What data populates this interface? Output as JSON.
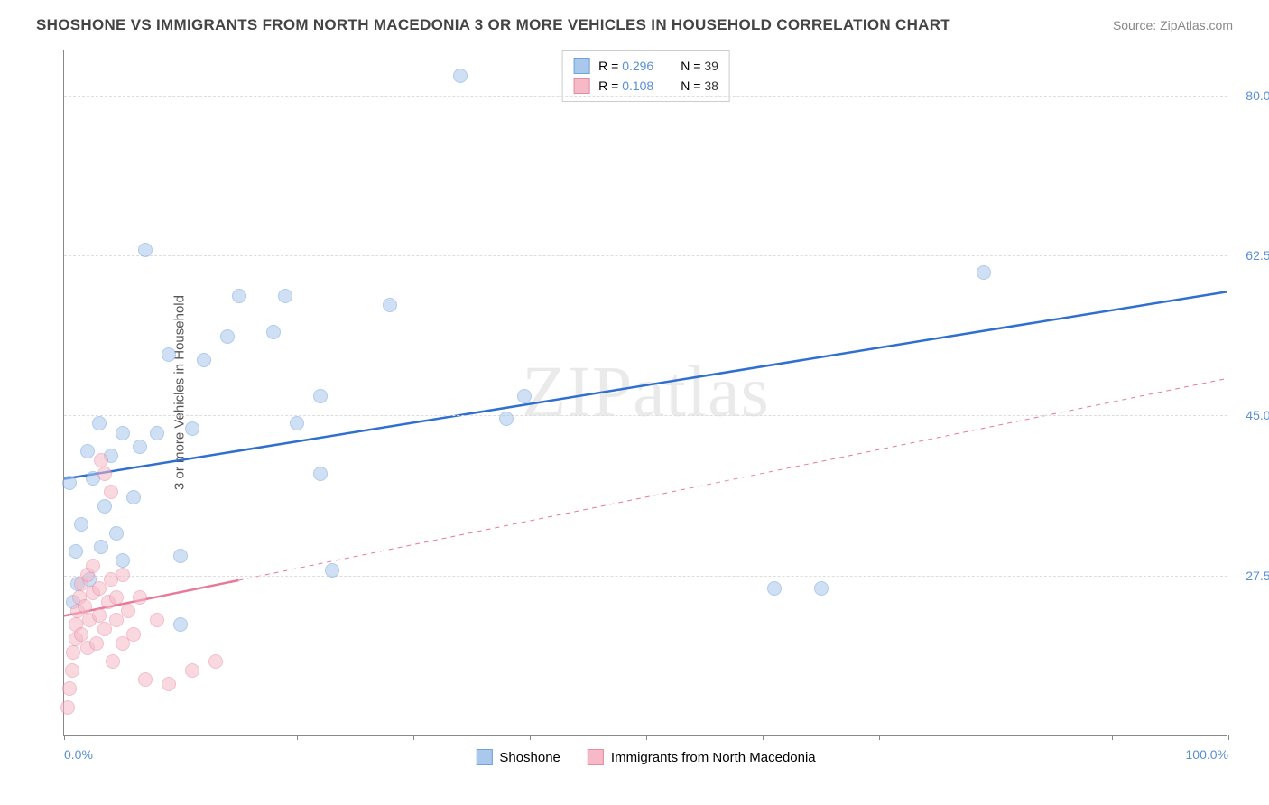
{
  "title": "SHOSHONE VS IMMIGRANTS FROM NORTH MACEDONIA 3 OR MORE VEHICLES IN HOUSEHOLD CORRELATION CHART",
  "source": "Source: ZipAtlas.com",
  "ylabel": "3 or more Vehicles in Household",
  "watermark": "ZIPatlas",
  "chart": {
    "type": "scatter-with-regression",
    "background_color": "#ffffff",
    "grid_color": "#dddddd",
    "axis_color": "#888888",
    "tick_label_color": "#5a8fd6",
    "xlim": [
      0,
      100
    ],
    "ylim": [
      10,
      85
    ],
    "xticks_major": [
      0,
      10,
      20,
      30,
      40,
      50,
      60,
      70,
      80,
      90,
      100
    ],
    "xaxis_labels": [
      {
        "x": 0,
        "label": "0.0%"
      },
      {
        "x": 100,
        "label": "100.0%"
      }
    ],
    "yticks": [
      {
        "y": 27.5,
        "label": "27.5%"
      },
      {
        "y": 45.0,
        "label": "45.0%"
      },
      {
        "y": 62.5,
        "label": "62.5%"
      },
      {
        "y": 80.0,
        "label": "80.0%"
      }
    ],
    "marker_radius": 8,
    "marker_opacity": 0.55,
    "line_width_solid": 2.5,
    "line_width_dash": 1,
    "series": [
      {
        "name": "Shoshone",
        "color_fill": "#a9c8ec",
        "color_stroke": "#6fa1dd",
        "R": "0.296",
        "N": "39",
        "regression": {
          "x1": 0,
          "y1": 38.0,
          "x2": 100,
          "y2": 58.5,
          "solid_until_x": 100,
          "style": "solid",
          "color": "#2f6fd0"
        },
        "points": [
          {
            "x": 0.5,
            "y": 37.5
          },
          {
            "x": 1.0,
            "y": 30.0
          },
          {
            "x": 1.5,
            "y": 33.0
          },
          {
            "x": 2.0,
            "y": 41.0
          },
          {
            "x": 2.5,
            "y": 38.0
          },
          {
            "x": 3.0,
            "y": 44.0
          },
          {
            "x": 3.5,
            "y": 35.0
          },
          {
            "x": 4.0,
            "y": 40.5
          },
          {
            "x": 5.0,
            "y": 43.0
          },
          {
            "x": 5.0,
            "y": 29.0
          },
          {
            "x": 6.0,
            "y": 36.0
          },
          {
            "x": 6.5,
            "y": 41.5
          },
          {
            "x": 7.0,
            "y": 63.0
          },
          {
            "x": 8.0,
            "y": 43.0
          },
          {
            "x": 9.0,
            "y": 51.5
          },
          {
            "x": 10.0,
            "y": 22.0
          },
          {
            "x": 10.0,
            "y": 29.5
          },
          {
            "x": 11.0,
            "y": 43.5
          },
          {
            "x": 12.0,
            "y": 51.0
          },
          {
            "x": 14.0,
            "y": 53.5
          },
          {
            "x": 15.0,
            "y": 58.0
          },
          {
            "x": 18.0,
            "y": 54.0
          },
          {
            "x": 19.0,
            "y": 58.0
          },
          {
            "x": 20.0,
            "y": 44.0
          },
          {
            "x": 22.0,
            "y": 47.0
          },
          {
            "x": 22.0,
            "y": 38.5
          },
          {
            "x": 23.0,
            "y": 28.0
          },
          {
            "x": 28.0,
            "y": 57.0
          },
          {
            "x": 34.0,
            "y": 82.0
          },
          {
            "x": 38.0,
            "y": 44.5
          },
          {
            "x": 61.0,
            "y": 26.0
          },
          {
            "x": 65.0,
            "y": 26.0
          },
          {
            "x": 79.0,
            "y": 60.5
          },
          {
            "x": 0.8,
            "y": 24.5
          },
          {
            "x": 1.2,
            "y": 26.5
          },
          {
            "x": 2.2,
            "y": 27.0
          },
          {
            "x": 3.2,
            "y": 30.5
          },
          {
            "x": 4.5,
            "y": 32.0
          },
          {
            "x": 39.5,
            "y": 47.0
          }
        ]
      },
      {
        "name": "Immigrants from North Macedonia",
        "color_fill": "#f5b9c8",
        "color_stroke": "#e88aa4",
        "R": "0.108",
        "N": "38",
        "regression": {
          "x1": 0,
          "y1": 23.0,
          "x2": 100,
          "y2": 49.0,
          "solid_until_x": 15,
          "style": "dashed",
          "color": "#e77a98"
        },
        "points": [
          {
            "x": 0.3,
            "y": 13.0
          },
          {
            "x": 0.5,
            "y": 15.0
          },
          {
            "x": 0.7,
            "y": 17.0
          },
          {
            "x": 0.8,
            "y": 19.0
          },
          {
            "x": 1.0,
            "y": 20.5
          },
          {
            "x": 1.0,
            "y": 22.0
          },
          {
            "x": 1.2,
            "y": 23.5
          },
          {
            "x": 1.3,
            "y": 25.0
          },
          {
            "x": 1.5,
            "y": 26.5
          },
          {
            "x": 1.5,
            "y": 21.0
          },
          {
            "x": 1.8,
            "y": 24.0
          },
          {
            "x": 2.0,
            "y": 27.5
          },
          {
            "x": 2.0,
            "y": 19.5
          },
          {
            "x": 2.2,
            "y": 22.5
          },
          {
            "x": 2.5,
            "y": 25.5
          },
          {
            "x": 2.5,
            "y": 28.5
          },
          {
            "x": 2.8,
            "y": 20.0
          },
          {
            "x": 3.0,
            "y": 23.0
          },
          {
            "x": 3.0,
            "y": 26.0
          },
          {
            "x": 3.2,
            "y": 40.0
          },
          {
            "x": 3.5,
            "y": 21.5
          },
          {
            "x": 3.5,
            "y": 38.5
          },
          {
            "x": 3.8,
            "y": 24.5
          },
          {
            "x": 4.0,
            "y": 27.0
          },
          {
            "x": 4.0,
            "y": 36.5
          },
          {
            "x": 4.2,
            "y": 18.0
          },
          {
            "x": 4.5,
            "y": 22.5
          },
          {
            "x": 4.5,
            "y": 25.0
          },
          {
            "x": 5.0,
            "y": 20.0
          },
          {
            "x": 5.0,
            "y": 27.5
          },
          {
            "x": 5.5,
            "y": 23.5
          },
          {
            "x": 6.0,
            "y": 21.0
          },
          {
            "x": 6.5,
            "y": 25.0
          },
          {
            "x": 7.0,
            "y": 16.0
          },
          {
            "x": 8.0,
            "y": 22.5
          },
          {
            "x": 9.0,
            "y": 15.5
          },
          {
            "x": 11.0,
            "y": 17.0
          },
          {
            "x": 13.0,
            "y": 18.0
          }
        ]
      }
    ],
    "legend_bottom": [
      {
        "label": "Shoshone",
        "fill": "#a9c8ec",
        "stroke": "#6fa1dd"
      },
      {
        "label": "Immigrants from North Macedonia",
        "fill": "#f5b9c8",
        "stroke": "#e88aa4"
      }
    ]
  }
}
